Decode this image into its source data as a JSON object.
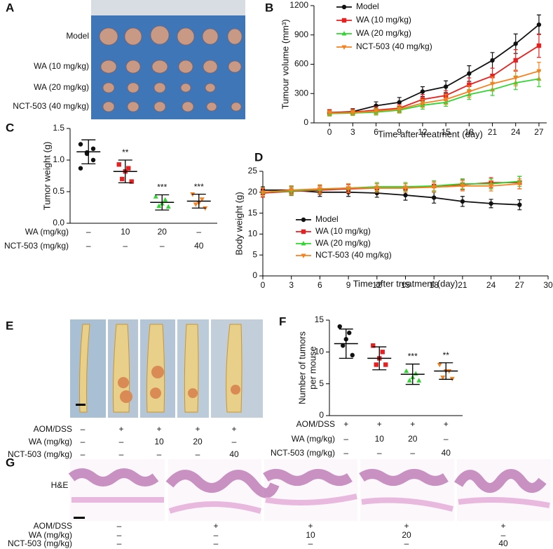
{
  "panel_labels": [
    "A",
    "B",
    "C",
    "D",
    "E",
    "F",
    "G"
  ],
  "panel_A": {
    "rows": [
      "Model",
      "WA (10 mg/kg)",
      "WA (20 mg/kg)",
      "NCT-503 (40 mg/kg)"
    ]
  },
  "chart_data": [
    {
      "type": "line",
      "ylabel": "Tumour volume (mm³)",
      "xlabel": "Time after treatment (day)",
      "x": [
        0,
        3,
        6,
        9,
        12,
        15,
        18,
        21,
        24,
        27
      ],
      "xlim": [
        -2,
        28
      ],
      "xticks": [
        0,
        3,
        6,
        9,
        12,
        15,
        18,
        21,
        24,
        27
      ],
      "ylim": [
        0,
        1200
      ],
      "yticks": [
        0,
        300,
        600,
        900,
        1200
      ],
      "legend": "upper left",
      "series": [
        {
          "name": "Model",
          "color": "#111111",
          "marker": "circle",
          "values": [
            105,
            115,
            175,
            210,
            320,
            370,
            505,
            640,
            810,
            1005
          ],
          "errors": [
            30,
            30,
            40,
            50,
            50,
            60,
            80,
            80,
            100,
            100
          ]
        },
        {
          "name": "WA (10 mg/kg)",
          "color": "#e8201f",
          "marker": "square",
          "values": [
            105,
            110,
            130,
            150,
            240,
            280,
            390,
            480,
            640,
            790
          ],
          "errors": [
            30,
            30,
            35,
            40,
            50,
            50,
            70,
            80,
            110,
            120
          ]
        },
        {
          "name": "WA (20 mg/kg)",
          "color": "#2fd62f",
          "marker": "triangle",
          "values": [
            95,
            100,
            110,
            130,
            180,
            210,
            290,
            340,
            410,
            450
          ],
          "errors": [
            25,
            25,
            30,
            30,
            40,
            40,
            50,
            60,
            70,
            80
          ]
        },
        {
          "name": "NCT-503 (40 mg/kg)",
          "color": "#f5821f",
          "marker": "triangle-down",
          "values": [
            100,
            105,
            120,
            140,
            200,
            240,
            320,
            400,
            460,
            530
          ],
          "errors": [
            25,
            25,
            30,
            35,
            40,
            50,
            60,
            70,
            80,
            90
          ]
        }
      ]
    },
    {
      "type": "dot",
      "ylabel": "Tumor weight (g)",
      "ylim": [
        0,
        1.5
      ],
      "yticks": [
        {
          "value": 0,
          "label": "0.0"
        },
        0.5,
        {
          "value": 1,
          "label": "1.0"
        },
        1.5
      ],
      "colors": [
        "#111111",
        "#e8201f",
        "#2fd62f",
        "#f5821f"
      ],
      "markers": [
        "circle",
        "square",
        "triangle",
        "triangle-down"
      ],
      "points": [
        [
          1.25,
          1.18,
          1.12,
          1.1,
          1.0,
          0.87
        ],
        [
          0.93,
          0.87,
          0.82,
          0.7,
          0.66
        ],
        [
          0.42,
          0.37,
          0.31,
          0.27,
          0.26
        ],
        [
          0.46,
          0.38,
          0.32,
          0.3,
          0.24
        ]
      ],
      "means": [
        1.13,
        0.82,
        0.33,
        0.35
      ],
      "sds": [
        0.19,
        0.18,
        0.12,
        0.11
      ],
      "significance": [
        null,
        "**",
        "***",
        "***"
      ],
      "conditions": [
        {
          "label": "WA (mg/kg)",
          "cells": [
            "–",
            "10",
            "20",
            "–"
          ]
        },
        {
          "label": "NCT-503 (mg/kg)",
          "cells": [
            "–",
            "–",
            "–",
            "40"
          ]
        }
      ]
    },
    {
      "type": "line",
      "ylabel": "Body weight (g)",
      "xlabel": "Time after treatment (day)",
      "x": [
        0,
        3,
        6,
        9,
        12,
        15,
        18,
        21,
        24,
        27
      ],
      "xlim": [
        0,
        30
      ],
      "xticks": [
        0,
        3,
        6,
        9,
        12,
        15,
        18,
        21,
        24,
        27,
        30
      ],
      "ylim": [
        0,
        25
      ],
      "yticks": [
        0,
        5,
        10,
        15,
        20,
        25
      ],
      "legend": "lower left",
      "series": [
        {
          "name": "Model",
          "color": "#111111",
          "marker": "circle",
          "values": [
            20.5,
            20.5,
            20,
            20,
            19.8,
            19.3,
            18.7,
            17.8,
            17.3,
            17
          ],
          "errors": [
            0.8,
            1,
            1,
            1,
            1,
            1.2,
            1.3,
            1.2,
            1,
            1.2
          ]
        },
        {
          "name": "WA (10 mg/kg)",
          "color": "#e8201f",
          "marker": "square",
          "values": [
            19.8,
            20.2,
            20.5,
            20.8,
            21,
            21,
            21.5,
            21.8,
            22.3,
            22.3
          ],
          "errors": [
            1,
            1,
            1,
            1,
            1,
            1,
            1.2,
            1.2,
            1.2,
            1.5
          ]
        },
        {
          "name": "WA (20 mg/kg)",
          "color": "#2fd62f",
          "marker": "triangle",
          "values": [
            20,
            20.3,
            20.7,
            21,
            21.3,
            21.3,
            21.5,
            22,
            22,
            22.6
          ],
          "errors": [
            1,
            1,
            1,
            1,
            1,
            1,
            1.2,
            1.2,
            1.2,
            1.2
          ]
        },
        {
          "name": "NCT-503 (40 mg/kg)",
          "color": "#f5821f",
          "marker": "triangle-down",
          "values": [
            20,
            20.5,
            20.8,
            21,
            21,
            21,
            21.2,
            21.5,
            21.5,
            22
          ],
          "errors": [
            1,
            1,
            1,
            1,
            1,
            1,
            1.2,
            1.2,
            1.2,
            1.2
          ]
        }
      ]
    },
    {
      "type": "dot",
      "ylabel": [
        "Number of tumors",
        "per mouse"
      ],
      "ylim": [
        0,
        15
      ],
      "yticks": [
        0,
        5,
        10,
        15
      ],
      "colors": [
        "#111111",
        "#e8201f",
        "#2fd62f",
        "#f5821f"
      ],
      "markers": [
        "circle",
        "square",
        "triangle",
        "triangle-down"
      ],
      "points": [
        [
          14,
          13,
          12,
          11,
          9.5
        ],
        [
          11,
          10,
          9,
          8,
          8
        ],
        [
          7,
          6.6,
          6,
          5.5,
          5.5
        ],
        [
          8,
          7,
          7,
          6,
          5.8
        ]
      ],
      "means": [
        11.3,
        9,
        6.5,
        7
      ],
      "sds": [
        2.3,
        1.8,
        1.6,
        1.3
      ],
      "significance": [
        null,
        null,
        "***",
        "**"
      ],
      "conditions": [
        {
          "label": "AOM/DSS",
          "cells": [
            "+",
            "+",
            "+",
            "+"
          ]
        },
        {
          "label": "WA (mg/kg)",
          "cells": [
            "–",
            "10",
            "20",
            "–"
          ]
        },
        {
          "label": "NCT-503 (mg/kg)",
          "cells": [
            "–",
            "–",
            "–",
            "40"
          ]
        }
      ]
    }
  ],
  "panel_E": {
    "rows": [
      {
        "label": "AOM/DSS",
        "cells": [
          "–",
          "+",
          "+",
          "+",
          "+"
        ]
      },
      {
        "label": "WA (mg/kg)",
        "cells": [
          "–",
          "–",
          "10",
          "20",
          "–"
        ]
      },
      {
        "label": "NCT-503 (mg/kg)",
        "cells": [
          "–",
          "–",
          "–",
          "–",
          "40"
        ]
      }
    ]
  },
  "panel_G": {
    "stain": "H&E",
    "rows": [
      {
        "label": "AOM/DSS",
        "cells": [
          "–",
          "+",
          "+",
          "+",
          "+"
        ]
      },
      {
        "label": "WA (mg/kg)",
        "cells": [
          "–",
          "–",
          "10",
          "20",
          "–"
        ]
      },
      {
        "label": "NCT-503 (mg/kg)",
        "cells": [
          "–",
          "–",
          "–",
          "–",
          "40"
        ]
      }
    ]
  }
}
